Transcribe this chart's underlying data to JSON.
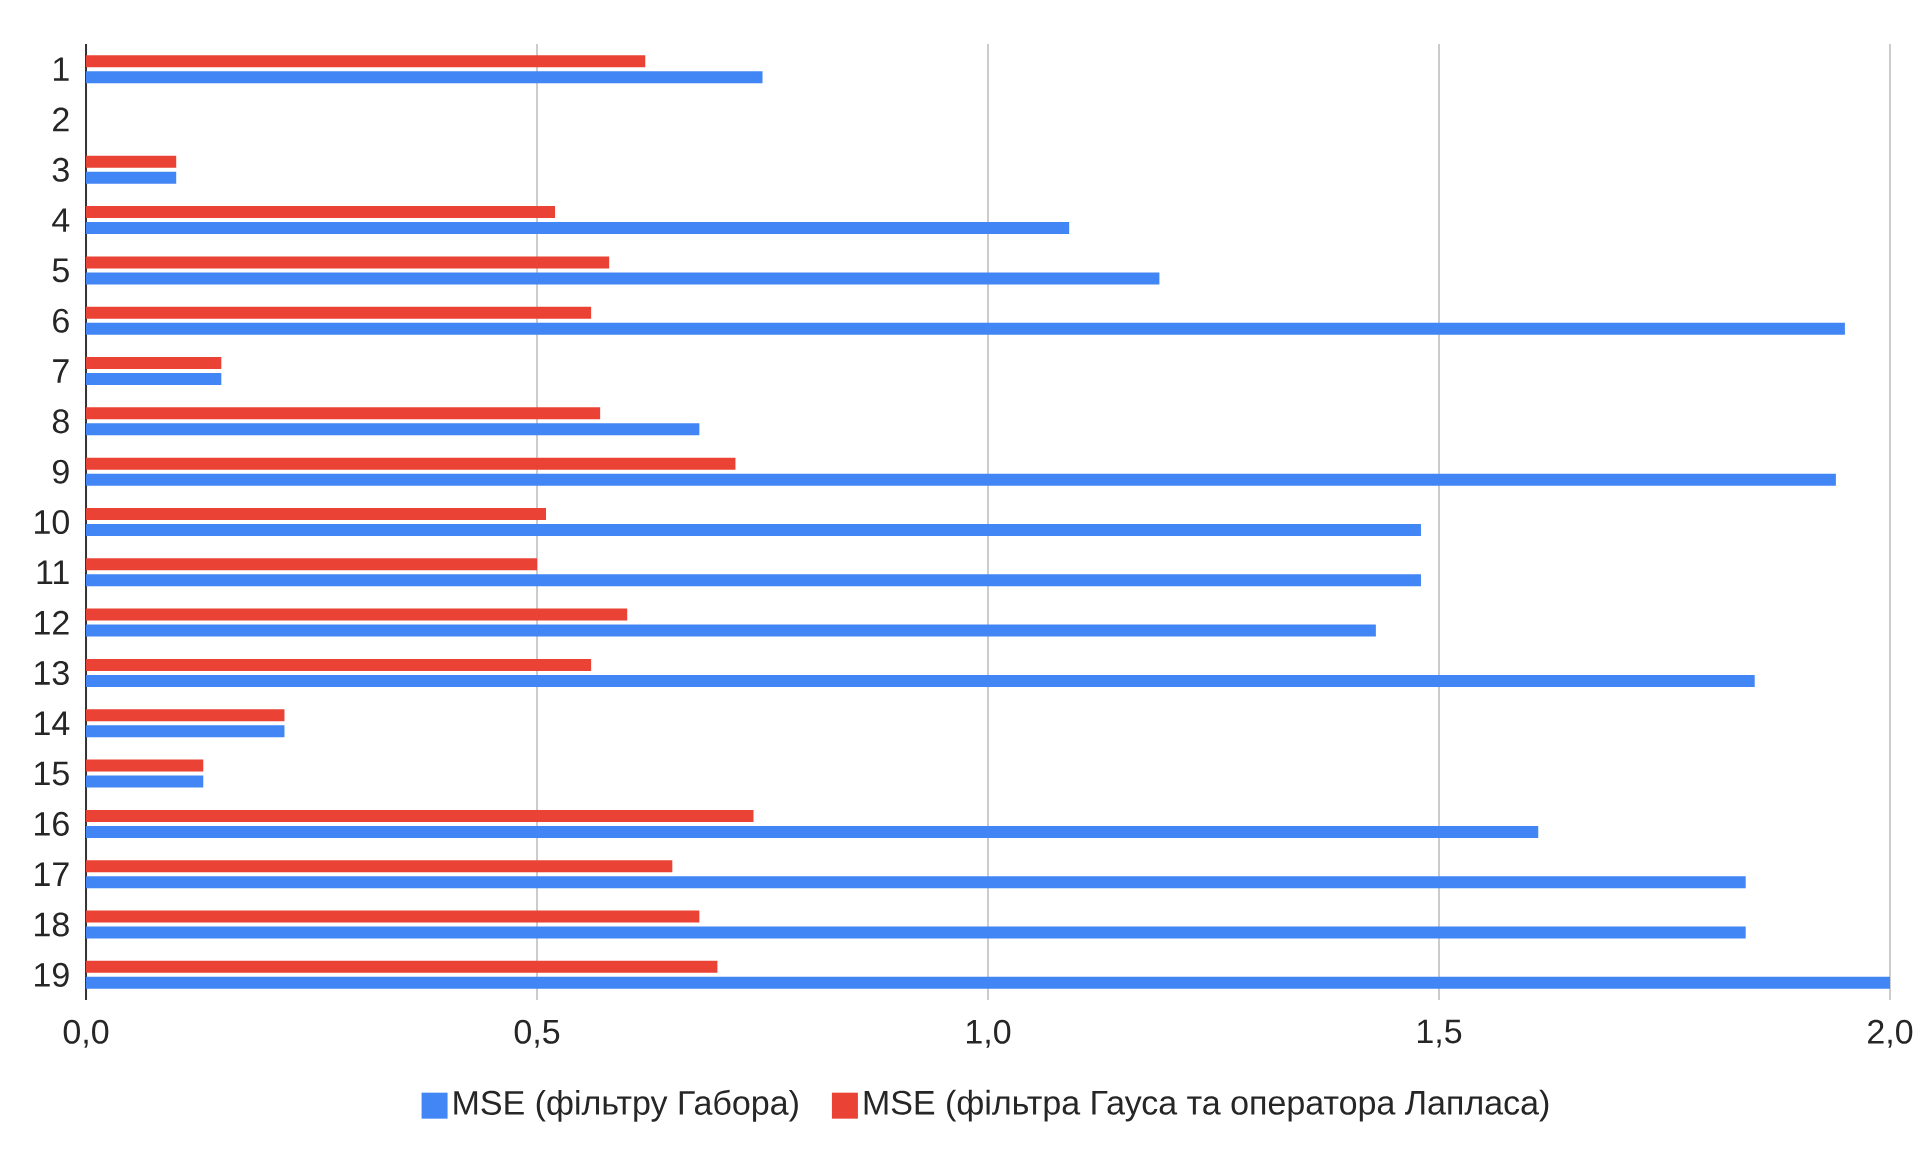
{
  "chart_data": {
    "type": "bar",
    "orientation": "horizontal",
    "categories": [
      "1",
      "2",
      "3",
      "4",
      "5",
      "6",
      "7",
      "8",
      "9",
      "10",
      "11",
      "12",
      "13",
      "14",
      "15",
      "16",
      "17",
      "18",
      "19"
    ],
    "series": [
      {
        "name": "MSE (фільтру Габора)",
        "color": "#4285f4",
        "values": [
          0.75,
          null,
          0.1,
          1.09,
          1.19,
          1.95,
          0.15,
          0.68,
          1.94,
          1.48,
          1.48,
          1.43,
          1.85,
          0.22,
          0.13,
          1.61,
          1.84,
          1.84,
          2.0
        ]
      },
      {
        "name": "MSE (фільтра Гауса та оператора Лапласа)",
        "color": "#ea4335",
        "values": [
          0.62,
          null,
          0.1,
          0.52,
          0.58,
          0.56,
          0.15,
          0.57,
          0.72,
          0.51,
          0.5,
          0.6,
          0.56,
          0.22,
          0.13,
          0.74,
          0.65,
          0.68,
          0.7
        ]
      }
    ],
    "xlim": [
      0,
      2.0
    ],
    "xticks": [
      {
        "value": 0,
        "label": "0,0"
      },
      {
        "value": 0.5,
        "label": "0,5"
      },
      {
        "value": 1.0,
        "label": "1,0"
      },
      {
        "value": 1.5,
        "label": "1,5"
      },
      {
        "value": 2.0,
        "label": "2,0"
      }
    ],
    "grid": "x",
    "legend": "bottom"
  }
}
